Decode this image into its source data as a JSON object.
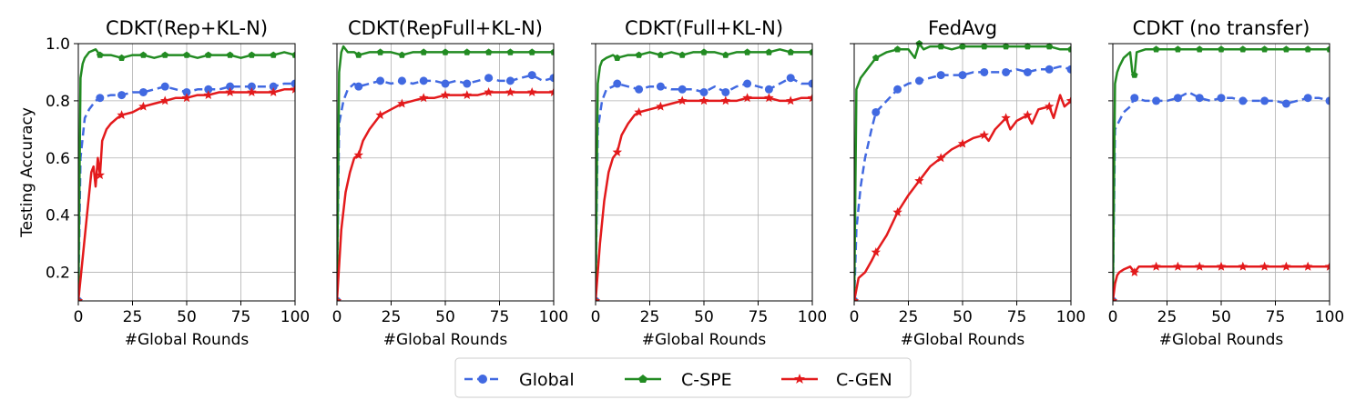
{
  "colors": {
    "global": "#4169e1",
    "cspe": "#228b22",
    "cgen": "#e31a1c",
    "grid": "#b0b0b0"
  },
  "legend": {
    "placement": "bottom-center",
    "entries": [
      "Global",
      "C-SPE",
      "C-GEN"
    ]
  },
  "chart_data": [
    {
      "type": "line",
      "title": "CDKT(Rep+KL-N)",
      "xlabel": "#Global Rounds",
      "ylabel": "Testing Accuracy",
      "xlim": [
        0,
        100
      ],
      "ylim": [
        0.1,
        1.0
      ],
      "xticks": [
        "0",
        "25",
        "50",
        "75",
        "100"
      ],
      "yticks": [
        "0.2",
        "0.4",
        "0.6",
        "0.8",
        "1.0"
      ],
      "grid": true,
      "series": [
        {
          "name": "Global",
          "x": [
            0,
            1,
            3,
            5,
            8,
            10,
            15,
            20,
            25,
            30,
            35,
            40,
            45,
            50,
            55,
            60,
            65,
            70,
            75,
            80,
            85,
            90,
            95,
            100
          ],
          "y": [
            0.1,
            0.6,
            0.74,
            0.77,
            0.8,
            0.81,
            0.82,
            0.82,
            0.83,
            0.83,
            0.84,
            0.85,
            0.84,
            0.83,
            0.84,
            0.84,
            0.84,
            0.85,
            0.85,
            0.85,
            0.85,
            0.85,
            0.86,
            0.86
          ]
        },
        {
          "name": "C-SPE",
          "x": [
            0,
            1,
            2,
            3,
            5,
            8,
            10,
            15,
            20,
            25,
            30,
            35,
            40,
            45,
            50,
            55,
            60,
            65,
            70,
            75,
            80,
            85,
            90,
            95,
            100
          ],
          "y": [
            0.1,
            0.88,
            0.93,
            0.95,
            0.97,
            0.98,
            0.96,
            0.96,
            0.95,
            0.96,
            0.96,
            0.95,
            0.96,
            0.96,
            0.96,
            0.95,
            0.96,
            0.96,
            0.96,
            0.95,
            0.96,
            0.96,
            0.96,
            0.97,
            0.96
          ]
        },
        {
          "name": "C-GEN",
          "x": [
            0,
            2,
            4,
            6,
            7,
            8,
            9,
            10,
            11,
            13,
            15,
            18,
            20,
            25,
            30,
            35,
            40,
            45,
            50,
            55,
            60,
            65,
            70,
            75,
            80,
            85,
            90,
            95,
            100
          ],
          "y": [
            0.1,
            0.25,
            0.4,
            0.55,
            0.57,
            0.5,
            0.6,
            0.54,
            0.66,
            0.7,
            0.72,
            0.74,
            0.75,
            0.76,
            0.78,
            0.79,
            0.8,
            0.81,
            0.81,
            0.82,
            0.82,
            0.83,
            0.83,
            0.83,
            0.83,
            0.83,
            0.83,
            0.84,
            0.84
          ]
        }
      ]
    },
    {
      "type": "line",
      "title": "CDKT(RepFull+KL-N)",
      "xlabel": "#Global Rounds",
      "ylabel": "",
      "xlim": [
        0,
        100
      ],
      "ylim": [
        0.1,
        1.0
      ],
      "xticks": [
        "0",
        "25",
        "50",
        "75",
        "100"
      ],
      "yticks": [
        "0.2",
        "0.4",
        "0.6",
        "0.8",
        "1.0"
      ],
      "grid": true,
      "series": [
        {
          "name": "Global",
          "x": [
            0,
            1,
            3,
            5,
            8,
            10,
            15,
            20,
            25,
            30,
            35,
            40,
            45,
            50,
            55,
            60,
            65,
            70,
            75,
            80,
            85,
            90,
            95,
            100
          ],
          "y": [
            0.1,
            0.72,
            0.8,
            0.84,
            0.86,
            0.85,
            0.86,
            0.87,
            0.86,
            0.87,
            0.86,
            0.87,
            0.87,
            0.86,
            0.87,
            0.86,
            0.87,
            0.88,
            0.87,
            0.87,
            0.88,
            0.89,
            0.87,
            0.88
          ]
        },
        {
          "name": "C-SPE",
          "x": [
            0,
            1,
            2,
            3,
            5,
            8,
            10,
            15,
            20,
            25,
            30,
            35,
            40,
            45,
            50,
            55,
            60,
            65,
            70,
            75,
            80,
            85,
            90,
            95,
            100
          ],
          "y": [
            0.1,
            0.9,
            0.97,
            0.99,
            0.97,
            0.97,
            0.96,
            0.97,
            0.97,
            0.97,
            0.96,
            0.97,
            0.97,
            0.97,
            0.97,
            0.97,
            0.97,
            0.97,
            0.97,
            0.97,
            0.97,
            0.97,
            0.97,
            0.97,
            0.97
          ]
        },
        {
          "name": "C-GEN",
          "x": [
            0,
            2,
            4,
            6,
            8,
            10,
            12,
            15,
            18,
            20,
            25,
            30,
            35,
            40,
            45,
            50,
            55,
            60,
            65,
            70,
            75,
            80,
            85,
            90,
            95,
            100
          ],
          "y": [
            0.1,
            0.35,
            0.48,
            0.55,
            0.6,
            0.61,
            0.66,
            0.7,
            0.73,
            0.75,
            0.77,
            0.79,
            0.8,
            0.81,
            0.81,
            0.82,
            0.82,
            0.82,
            0.82,
            0.83,
            0.83,
            0.83,
            0.83,
            0.83,
            0.83,
            0.83
          ]
        }
      ]
    },
    {
      "type": "line",
      "title": "CDKT(Full+KL-N)",
      "xlabel": "#Global Rounds",
      "ylabel": "",
      "xlim": [
        0,
        100
      ],
      "ylim": [
        0.1,
        1.0
      ],
      "xticks": [
        "0",
        "25",
        "50",
        "75",
        "100"
      ],
      "yticks": [
        "0.2",
        "0.4",
        "0.6",
        "0.8",
        "1.0"
      ],
      "grid": true,
      "series": [
        {
          "name": "Global",
          "x": [
            0,
            1,
            3,
            5,
            8,
            10,
            15,
            20,
            25,
            30,
            35,
            40,
            45,
            50,
            55,
            60,
            65,
            70,
            75,
            80,
            85,
            90,
            95,
            100
          ],
          "y": [
            0.1,
            0.7,
            0.8,
            0.84,
            0.85,
            0.86,
            0.85,
            0.84,
            0.85,
            0.85,
            0.84,
            0.84,
            0.84,
            0.83,
            0.85,
            0.83,
            0.85,
            0.86,
            0.85,
            0.84,
            0.86,
            0.88,
            0.86,
            0.86
          ]
        },
        {
          "name": "C-SPE",
          "x": [
            0,
            1,
            2,
            3,
            5,
            8,
            10,
            15,
            20,
            25,
            30,
            35,
            40,
            45,
            50,
            55,
            60,
            65,
            70,
            75,
            80,
            85,
            90,
            95,
            100
          ],
          "y": [
            0.1,
            0.86,
            0.92,
            0.94,
            0.95,
            0.96,
            0.95,
            0.96,
            0.96,
            0.97,
            0.96,
            0.97,
            0.96,
            0.97,
            0.97,
            0.97,
            0.96,
            0.97,
            0.97,
            0.97,
            0.97,
            0.98,
            0.97,
            0.97,
            0.97
          ]
        },
        {
          "name": "C-GEN",
          "x": [
            0,
            2,
            4,
            6,
            8,
            10,
            12,
            15,
            18,
            20,
            25,
            30,
            35,
            40,
            45,
            50,
            55,
            60,
            65,
            70,
            75,
            80,
            85,
            90,
            95,
            100
          ],
          "y": [
            0.1,
            0.3,
            0.45,
            0.55,
            0.6,
            0.62,
            0.68,
            0.72,
            0.75,
            0.76,
            0.77,
            0.78,
            0.79,
            0.8,
            0.8,
            0.8,
            0.8,
            0.8,
            0.8,
            0.81,
            0.81,
            0.81,
            0.8,
            0.8,
            0.81,
            0.81
          ]
        }
      ]
    },
    {
      "type": "line",
      "title": "FedAvg",
      "xlabel": "#Global Rounds",
      "ylabel": "",
      "xlim": [
        0,
        100
      ],
      "ylim": [
        0.1,
        1.0
      ],
      "xticks": [
        "0",
        "25",
        "50",
        "75",
        "100"
      ],
      "yticks": [
        "0.2",
        "0.4",
        "0.6",
        "0.8",
        "1.0"
      ],
      "grid": true,
      "series": [
        {
          "name": "Global",
          "x": [
            0,
            1,
            3,
            5,
            8,
            10,
            15,
            20,
            25,
            30,
            35,
            40,
            45,
            50,
            55,
            60,
            65,
            70,
            75,
            80,
            85,
            90,
            95,
            100
          ],
          "y": [
            0.1,
            0.35,
            0.5,
            0.6,
            0.7,
            0.76,
            0.8,
            0.84,
            0.86,
            0.87,
            0.88,
            0.89,
            0.89,
            0.89,
            0.9,
            0.9,
            0.9,
            0.9,
            0.91,
            0.9,
            0.91,
            0.91,
            0.92,
            0.91
          ]
        },
        {
          "name": "C-SPE",
          "x": [
            0,
            1,
            2,
            3,
            5,
            8,
            10,
            15,
            20,
            25,
            28,
            30,
            32,
            35,
            40,
            45,
            50,
            55,
            60,
            65,
            70,
            75,
            80,
            85,
            90,
            95,
            100
          ],
          "y": [
            0.1,
            0.84,
            0.86,
            0.88,
            0.9,
            0.93,
            0.95,
            0.97,
            0.98,
            0.98,
            0.95,
            1.0,
            0.98,
            0.99,
            0.99,
            0.98,
            0.99,
            0.99,
            0.99,
            0.99,
            0.99,
            0.99,
            0.99,
            0.99,
            0.99,
            0.98,
            0.98
          ]
        },
        {
          "name": "C-GEN",
          "x": [
            0,
            2,
            5,
            8,
            10,
            15,
            20,
            25,
            30,
            35,
            40,
            45,
            50,
            55,
            60,
            62,
            65,
            70,
            72,
            75,
            80,
            82,
            85,
            90,
            92,
            95,
            97,
            100
          ],
          "y": [
            0.1,
            0.18,
            0.2,
            0.24,
            0.27,
            0.33,
            0.41,
            0.47,
            0.52,
            0.57,
            0.6,
            0.63,
            0.65,
            0.67,
            0.68,
            0.66,
            0.7,
            0.74,
            0.7,
            0.73,
            0.75,
            0.72,
            0.77,
            0.78,
            0.74,
            0.82,
            0.78,
            0.8
          ]
        }
      ]
    },
    {
      "type": "line",
      "title": "CDKT (no transfer)",
      "xlabel": "#Global Rounds",
      "ylabel": "",
      "xlim": [
        0,
        100
      ],
      "ylim": [
        0.1,
        1.0
      ],
      "xticks": [
        "0",
        "25",
        "50",
        "75",
        "100"
      ],
      "yticks": [
        "0.2",
        "0.4",
        "0.6",
        "0.8",
        "1.0"
      ],
      "grid": true,
      "series": [
        {
          "name": "Global",
          "x": [
            0,
            1,
            3,
            5,
            8,
            10,
            15,
            20,
            25,
            30,
            35,
            40,
            45,
            50,
            55,
            60,
            65,
            70,
            75,
            80,
            85,
            90,
            95,
            100
          ],
          "y": [
            0.1,
            0.7,
            0.73,
            0.76,
            0.78,
            0.81,
            0.8,
            0.8,
            0.8,
            0.81,
            0.83,
            0.81,
            0.8,
            0.81,
            0.81,
            0.8,
            0.8,
            0.8,
            0.8,
            0.79,
            0.8,
            0.81,
            0.81,
            0.8
          ]
        },
        {
          "name": "C-SPE",
          "x": [
            0,
            1,
            2,
            3,
            5,
            8,
            9,
            10,
            11,
            15,
            20,
            25,
            30,
            35,
            40,
            45,
            50,
            55,
            60,
            65,
            70,
            75,
            80,
            85,
            90,
            95,
            100
          ],
          "y": [
            0.1,
            0.86,
            0.9,
            0.92,
            0.95,
            0.97,
            0.9,
            0.89,
            0.97,
            0.98,
            0.98,
            0.98,
            0.98,
            0.98,
            0.98,
            0.98,
            0.98,
            0.98,
            0.98,
            0.98,
            0.98,
            0.98,
            0.98,
            0.98,
            0.98,
            0.98,
            0.98
          ]
        },
        {
          "name": "C-GEN",
          "x": [
            0,
            1,
            2,
            3,
            5,
            8,
            10,
            12,
            15,
            20,
            25,
            30,
            35,
            40,
            45,
            50,
            55,
            60,
            65,
            70,
            75,
            80,
            85,
            90,
            95,
            100
          ],
          "y": [
            0.1,
            0.16,
            0.19,
            0.2,
            0.21,
            0.22,
            0.2,
            0.22,
            0.22,
            0.22,
            0.22,
            0.22,
            0.22,
            0.22,
            0.22,
            0.22,
            0.22,
            0.22,
            0.22,
            0.22,
            0.22,
            0.22,
            0.22,
            0.22,
            0.22,
            0.22
          ]
        }
      ]
    }
  ]
}
